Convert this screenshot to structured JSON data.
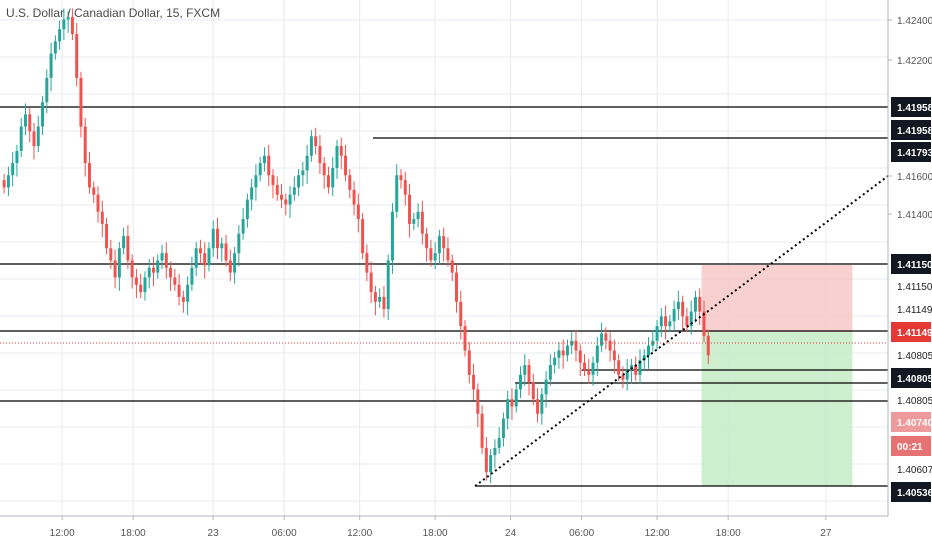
{
  "chart_data": {
    "type": "candlestick",
    "title": "U.S. Dollar / Canadian Dollar, 15, FXCM",
    "colors": {
      "up": "#26a69a",
      "down": "#ef5350",
      "grid": "#e8ebf0",
      "level_line": "#000000",
      "stop_zone": "#f7c8c8",
      "target_zone": "#c5ecc6",
      "current_price_line": "#e03c3c"
    },
    "y_axis": {
      "range": [
        1.404,
        1.4252
      ],
      "ticks": [
        {
          "value": 1.424,
          "label": "1.42400"
        },
        {
          "value": 1.422,
          "label": "1.42200"
        },
        {
          "value": 1.416,
          "label": "1.41600"
        },
        {
          "value": 1.414,
          "label": "1.41400"
        }
      ]
    },
    "x_axis": {
      "labels": [
        {
          "pos": 0.07,
          "label": "12:00"
        },
        {
          "pos": 0.15,
          "label": "18:00"
        },
        {
          "pos": 0.24,
          "label": "23"
        },
        {
          "pos": 0.32,
          "label": "06:00"
        },
        {
          "pos": 0.405,
          "label": "12:00"
        },
        {
          "pos": 0.49,
          "label": "18:00"
        },
        {
          "pos": 0.575,
          "label": "24"
        },
        {
          "pos": 0.655,
          "label": "06:00"
        },
        {
          "pos": 0.74,
          "label": "12:00"
        },
        {
          "pos": 0.82,
          "label": "18:00"
        },
        {
          "pos": 0.93,
          "label": "27"
        }
      ]
    },
    "levels": [
      {
        "value": 1.41958,
        "label": "1.41958",
        "style": "dark",
        "x_start": 0.0
      },
      {
        "value": 1.41958,
        "label": "1.41958",
        "style": "dark",
        "x_start": 0.0,
        "offset": 1
      },
      {
        "value": 1.41793,
        "label": "1.41793",
        "style": "dark",
        "x_start": 0.42
      },
      {
        "value": 1.4115,
        "label": "1.41150",
        "style": "dark",
        "x_start": 0.0
      },
      {
        "value": 1.4115,
        "label": "1.41150",
        "style": "light",
        "x_start": 0.0,
        "offset": 1
      },
      {
        "value": 1.41149,
        "label": "1.41149",
        "style": "light",
        "x_start": 0.0,
        "offset": 2
      },
      {
        "value": 1.41149,
        "label": "1.41149",
        "style": "red",
        "x_start": 0.0,
        "offset": 3
      },
      {
        "value": 1.40805,
        "label": "1.40805",
        "style": "light",
        "x_start": 0.74
      },
      {
        "value": 1.40805,
        "label": "1.40805",
        "style": "dark",
        "x_start": 0.655,
        "offset": 1
      },
      {
        "value": 1.40805,
        "label": "1.40805",
        "style": "light",
        "x_start": 0.58,
        "offset": 2
      },
      {
        "value": 1.4074,
        "label": "1.40740",
        "style": "pink",
        "x_start": 0.0
      },
      {
        "value": 1.4068,
        "label": "00:21",
        "style": "timer",
        "x_start": 0.0
      },
      {
        "value": 1.40607,
        "label": "1.40607",
        "style": "light",
        "x_start": 0.0
      },
      {
        "value": 1.40536,
        "label": "1.40536",
        "style": "dark",
        "x_start": 0.535
      }
    ],
    "trendline": {
      "x1": 0.535,
      "y1": 1.40536,
      "x2": 1.0,
      "y2": 1.4162,
      "style": "dotted"
    },
    "position": {
      "x_start": 0.79,
      "x_end": 0.96,
      "entry": 1.41149,
      "stop": 1.4115,
      "target": 1.40536
    },
    "current_price": 1.4104,
    "candles_close": [
      1.4175,
      1.418,
      1.4185,
      1.419,
      1.42,
      1.4205,
      1.4198,
      1.4192,
      1.42,
      1.421,
      1.422,
      1.423,
      1.4235,
      1.424,
      1.4244,
      1.4245,
      1.4238,
      1.422,
      1.42,
      1.4185,
      1.4175,
      1.4172,
      1.4165,
      1.416,
      1.415,
      1.4145,
      1.4138,
      1.415,
      1.4155,
      1.4145,
      1.4138,
      1.4135,
      1.4132,
      1.4138,
      1.4142,
      1.414,
      1.4145,
      1.4148,
      1.4142,
      1.4138,
      1.4135,
      1.413,
      1.4128,
      1.4135,
      1.4142,
      1.415,
      1.4148,
      1.4143,
      1.415,
      1.4158,
      1.415,
      1.4152,
      1.4145,
      1.414,
      1.4148,
      1.4156,
      1.4162,
      1.417,
      1.4175,
      1.418,
      1.4185,
      1.4188,
      1.418,
      1.4176,
      1.4172,
      1.417,
      1.4168,
      1.4172,
      1.4175,
      1.418,
      1.4182,
      1.4188,
      1.4196,
      1.4192,
      1.4185,
      1.418,
      1.4175,
      1.4183,
      1.4192,
      1.4188,
      1.418,
      1.4174,
      1.4168,
      1.4162,
      1.4148,
      1.414,
      1.4132,
      1.4128,
      1.413,
      1.4125,
      1.4145,
      1.4165,
      1.418,
      1.4178,
      1.4172,
      1.416,
      1.4162,
      1.4165,
      1.4156,
      1.415,
      1.4145,
      1.4148,
      1.4155,
      1.415,
      1.4145,
      1.414,
      1.4128,
      1.4118,
      1.4108,
      1.4098,
      1.4092,
      1.4082,
      1.4068,
      1.4058,
      1.4065,
      1.4068,
      1.4072,
      1.408,
      1.4088,
      1.4085,
      1.4092,
      1.4098,
      1.4102,
      1.4095,
      1.4088,
      1.4082,
      1.409,
      1.4096,
      1.4102,
      1.4105,
      1.4108,
      1.4106,
      1.411,
      1.4112,
      1.4108,
      1.4103,
      1.41,
      1.4098,
      1.4103,
      1.411,
      1.4115,
      1.4112,
      1.4108,
      1.4104,
      1.4098,
      1.4096,
      1.41,
      1.4102,
      1.4098,
      1.4104,
      1.4106,
      1.411,
      1.4112,
      1.4118,
      1.4122,
      1.4118,
      1.412,
      1.4125,
      1.4128,
      1.4122,
      1.4118,
      1.4124,
      1.413,
      1.4124,
      1.4114,
      1.4106
    ]
  }
}
